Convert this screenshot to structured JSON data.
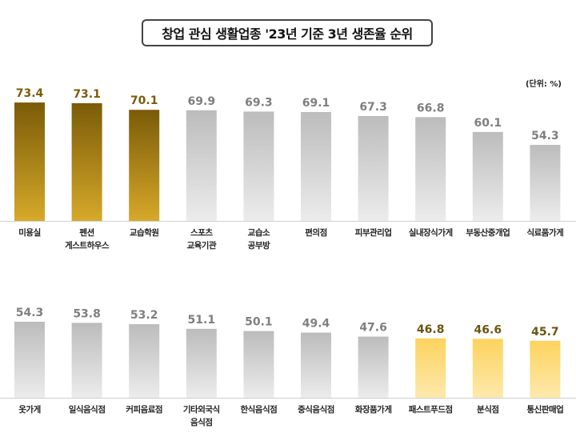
{
  "chart_data": [
    {
      "type": "bar",
      "title": "창업 관심 생활업종 '23년 기준 3년 생존율 순위",
      "unit_label": "(단위: %)",
      "ylim": [
        20,
        75
      ],
      "grid": false,
      "categories": [
        "미용실",
        "펜션\n게스트하우스",
        "교습학원",
        "스포츠\n교육기관",
        "교습소\n공부방",
        "편의점",
        "피부관리업",
        "실내장식가게",
        "부동산중개업",
        "식료품가게"
      ],
      "values": [
        73.4,
        73.1,
        70.1,
        69.9,
        69.3,
        69.1,
        67.3,
        66.8,
        60.1,
        54.3
      ],
      "highlight": [
        "top",
        "top",
        "top",
        "none",
        "none",
        "none",
        "none",
        "none",
        "none",
        "none"
      ]
    },
    {
      "type": "bar",
      "ylim": [
        20,
        75
      ],
      "grid": false,
      "categories": [
        "옷가게",
        "일식음식점",
        "커피음료점",
        "기타외국식\n음식점",
        "한식음식점",
        "중식음식점",
        "화장품가게",
        "패스트푸드점",
        "분식점",
        "통신판매업"
      ],
      "values": [
        54.3,
        53.8,
        53.2,
        51.1,
        50.1,
        49.4,
        47.6,
        46.8,
        46.6,
        45.7
      ],
      "highlight": [
        "none",
        "none",
        "none",
        "none",
        "none",
        "none",
        "none",
        "bottom",
        "bottom",
        "bottom"
      ]
    }
  ],
  "colors": {
    "top": [
      "#7a5b08",
      "#d6a92a"
    ],
    "bottom": [
      "#fdd35e",
      "#fde9ac"
    ],
    "none": [
      "#bcbcbc",
      "#ececec"
    ],
    "top_text": "#7a5b08",
    "bottom_text": "#6b5510",
    "none_text": "#7f7f7f"
  }
}
